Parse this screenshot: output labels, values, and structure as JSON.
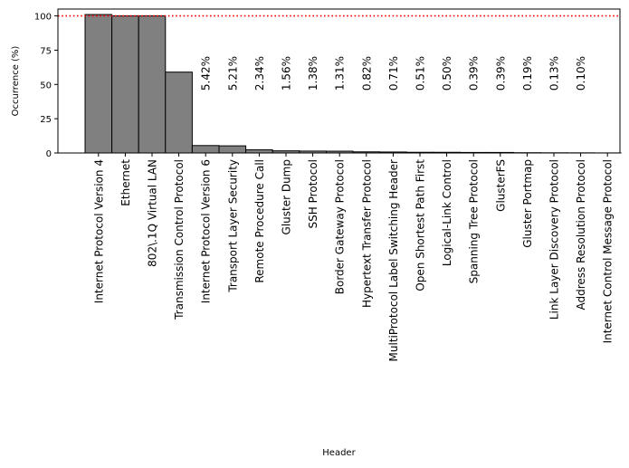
{
  "chart_data": {
    "type": "bar",
    "xlabel": "Header",
    "ylabel": "Occurrence (%)",
    "ylim": [
      0,
      105
    ],
    "yticks": [
      0,
      25,
      50,
      75,
      100
    ],
    "bar_color": "#808080",
    "bar_edge_color": "#000000",
    "reference_line": {
      "value": 100,
      "color": "#ff0000",
      "style": "dotted"
    },
    "categories": [
      "Internet Protocol Version 4",
      "Ethernet",
      "802\\.1Q Virtual LAN",
      "Transmission Control Protocol",
      "Internet Protocol Version 6",
      "Transport Layer Security",
      "Remote Procedure Call",
      "Gluster Dump",
      "SSH Protocol",
      "Border Gateway Protocol",
      "Hypertext Transfer Protocol",
      "MultiProtocol Label Switching Header",
      "Open Shortest Path First",
      "Logical-Link Control",
      "Spanning Tree Protocol",
      "GlusterFS",
      "Gluster Portmap",
      "Link Layer Discovery Protocol",
      "Address Resolution Protocol",
      "Internet Control Message Protocol"
    ],
    "values": [
      101,
      100,
      100,
      59,
      5.42,
      5.21,
      2.34,
      1.56,
      1.38,
      1.31,
      0.82,
      0.71,
      0.51,
      0.5,
      0.39,
      0.39,
      0.19,
      0.13,
      0.1,
      0.05
    ],
    "data_labels": [
      "",
      "",
      "",
      "",
      "5.42%",
      "5.21%",
      "2.34%",
      "1.56%",
      "1.38%",
      "1.31%",
      "0.82%",
      "0.71%",
      "0.51%",
      "0.50%",
      "0.39%",
      "0.39%",
      "0.19%",
      "0.13%",
      "0.10%",
      ""
    ],
    "grid": false
  }
}
